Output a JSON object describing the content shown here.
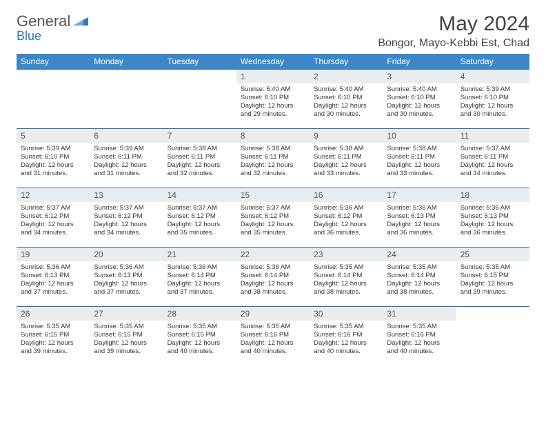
{
  "logo": {
    "part1": "General",
    "part2": "Blue"
  },
  "title": "May 2024",
  "location": "Bongor, Mayo-Kebbi Est, Chad",
  "header_bg": "#3b87c8",
  "daynum_bg": "#e9edf0",
  "row_border": "#2f6fa8",
  "weekdays": [
    "Sunday",
    "Monday",
    "Tuesday",
    "Wednesday",
    "Thursday",
    "Friday",
    "Saturday"
  ],
  "weeks": [
    [
      null,
      null,
      null,
      {
        "n": "1",
        "sr": "5:40 AM",
        "ss": "6:10 PM",
        "dl": "12 hours and 29 minutes."
      },
      {
        "n": "2",
        "sr": "5:40 AM",
        "ss": "6:10 PM",
        "dl": "12 hours and 30 minutes."
      },
      {
        "n": "3",
        "sr": "5:40 AM",
        "ss": "6:10 PM",
        "dl": "12 hours and 30 minutes."
      },
      {
        "n": "4",
        "sr": "5:39 AM",
        "ss": "6:10 PM",
        "dl": "12 hours and 30 minutes."
      }
    ],
    [
      {
        "n": "5",
        "sr": "5:39 AM",
        "ss": "6:10 PM",
        "dl": "12 hours and 31 minutes."
      },
      {
        "n": "6",
        "sr": "5:39 AM",
        "ss": "6:11 PM",
        "dl": "12 hours and 31 minutes."
      },
      {
        "n": "7",
        "sr": "5:38 AM",
        "ss": "6:11 PM",
        "dl": "12 hours and 32 minutes."
      },
      {
        "n": "8",
        "sr": "5:38 AM",
        "ss": "6:11 PM",
        "dl": "12 hours and 32 minutes."
      },
      {
        "n": "9",
        "sr": "5:38 AM",
        "ss": "6:11 PM",
        "dl": "12 hours and 33 minutes."
      },
      {
        "n": "10",
        "sr": "5:38 AM",
        "ss": "6:11 PM",
        "dl": "12 hours and 33 minutes."
      },
      {
        "n": "11",
        "sr": "5:37 AM",
        "ss": "6:11 PM",
        "dl": "12 hours and 34 minutes."
      }
    ],
    [
      {
        "n": "12",
        "sr": "5:37 AM",
        "ss": "6:12 PM",
        "dl": "12 hours and 34 minutes."
      },
      {
        "n": "13",
        "sr": "5:37 AM",
        "ss": "6:12 PM",
        "dl": "12 hours and 34 minutes."
      },
      {
        "n": "14",
        "sr": "5:37 AM",
        "ss": "6:12 PM",
        "dl": "12 hours and 35 minutes."
      },
      {
        "n": "15",
        "sr": "5:37 AM",
        "ss": "6:12 PM",
        "dl": "12 hours and 35 minutes."
      },
      {
        "n": "16",
        "sr": "5:36 AM",
        "ss": "6:12 PM",
        "dl": "12 hours and 36 minutes."
      },
      {
        "n": "17",
        "sr": "5:36 AM",
        "ss": "6:13 PM",
        "dl": "12 hours and 36 minutes."
      },
      {
        "n": "18",
        "sr": "5:36 AM",
        "ss": "6:13 PM",
        "dl": "12 hours and 36 minutes."
      }
    ],
    [
      {
        "n": "19",
        "sr": "5:36 AM",
        "ss": "6:13 PM",
        "dl": "12 hours and 37 minutes."
      },
      {
        "n": "20",
        "sr": "5:36 AM",
        "ss": "6:13 PM",
        "dl": "12 hours and 37 minutes."
      },
      {
        "n": "21",
        "sr": "5:36 AM",
        "ss": "6:14 PM",
        "dl": "12 hours and 37 minutes."
      },
      {
        "n": "22",
        "sr": "5:36 AM",
        "ss": "6:14 PM",
        "dl": "12 hours and 38 minutes."
      },
      {
        "n": "23",
        "sr": "5:35 AM",
        "ss": "6:14 PM",
        "dl": "12 hours and 38 minutes."
      },
      {
        "n": "24",
        "sr": "5:35 AM",
        "ss": "6:14 PM",
        "dl": "12 hours and 38 minutes."
      },
      {
        "n": "25",
        "sr": "5:35 AM",
        "ss": "6:15 PM",
        "dl": "12 hours and 39 minutes."
      }
    ],
    [
      {
        "n": "26",
        "sr": "5:35 AM",
        "ss": "6:15 PM",
        "dl": "12 hours and 39 minutes."
      },
      {
        "n": "27",
        "sr": "5:35 AM",
        "ss": "6:15 PM",
        "dl": "12 hours and 39 minutes."
      },
      {
        "n": "28",
        "sr": "5:35 AM",
        "ss": "6:15 PM",
        "dl": "12 hours and 40 minutes."
      },
      {
        "n": "29",
        "sr": "5:35 AM",
        "ss": "6:16 PM",
        "dl": "12 hours and 40 minutes."
      },
      {
        "n": "30",
        "sr": "5:35 AM",
        "ss": "6:16 PM",
        "dl": "12 hours and 40 minutes."
      },
      {
        "n": "31",
        "sr": "5:35 AM",
        "ss": "6:16 PM",
        "dl": "12 hours and 40 minutes."
      },
      null
    ]
  ],
  "labels": {
    "sunrise": "Sunrise: ",
    "sunset": "Sunset: ",
    "daylight": "Daylight: "
  }
}
